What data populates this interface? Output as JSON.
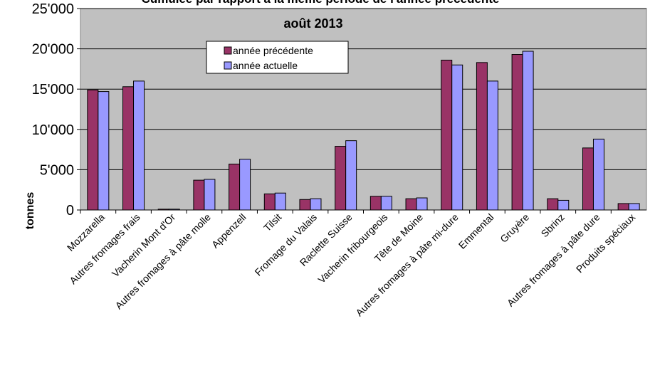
{
  "chart_data": {
    "type": "bar",
    "title": "Cumulée par rapport à la même période de l'année précédente",
    "subtitle": "août 2013",
    "xlabel": "",
    "ylabel": "tonnes",
    "ylim": [
      0,
      25000
    ],
    "yticks": [
      0,
      5000,
      10000,
      15000,
      20000,
      25000
    ],
    "ytick_labels": [
      "0",
      "5'000",
      "10'000",
      "15'000",
      "20'000",
      "25'000"
    ],
    "grid": true,
    "legend_position": "top-center",
    "categories": [
      "Mozzarella",
      "Autres fromages frais",
      "Vacherin Mont d'Or",
      "Autres fromages à pâte molle",
      "Appenzell",
      "Tilsit",
      "Fromage du Valais",
      "Raclette Suisse",
      "Vacherin fribourgeois",
      "Tête de Moine",
      "Autres fromages à pâte mi-dure",
      "Emmental",
      "Gruyère",
      "Sbrinz",
      "Autres fromages à pâte dure",
      "Produits spéciaux"
    ],
    "series": [
      {
        "name": "année précédente",
        "color": "#993366",
        "values": [
          14900,
          15300,
          100,
          3700,
          5700,
          2000,
          1300,
          7900,
          1700,
          1400,
          18600,
          18300,
          19300,
          1400,
          7700,
          800
        ]
      },
      {
        "name": "année actuelle",
        "color": "#9999ff",
        "values": [
          14700,
          16000,
          100,
          3800,
          6300,
          2100,
          1400,
          8600,
          1700,
          1500,
          18000,
          16000,
          19700,
          1200,
          8800,
          800
        ]
      }
    ],
    "colors": {
      "plot_background": "#c0c0c0",
      "gridline": "#000000"
    }
  }
}
